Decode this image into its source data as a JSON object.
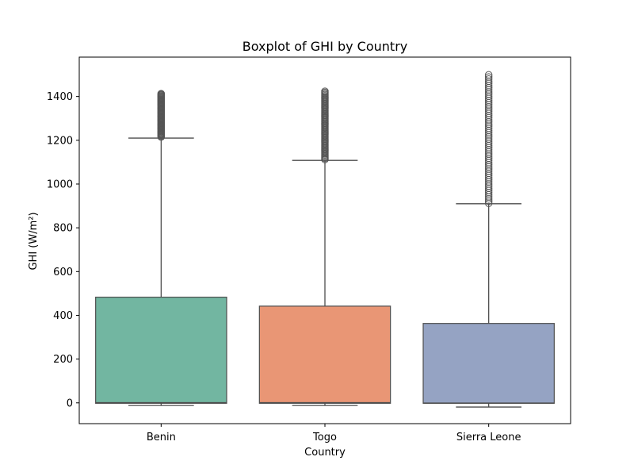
{
  "chart_data": {
    "type": "boxplot",
    "title": "Boxplot of GHI by Country",
    "xlabel": "Country",
    "ylabel": "GHI (W/m²)",
    "ylim": [
      -95,
      1580
    ],
    "yticks": [
      0,
      200,
      400,
      600,
      800,
      1000,
      1200,
      1400
    ],
    "categories": [
      "Benin",
      "Togo",
      "Sierra Leone"
    ],
    "series": [
      {
        "category": "Benin",
        "color": "#72b6a1",
        "min": -12,
        "q1": -2,
        "median": 1,
        "q3": 483,
        "whisker_high": 1210,
        "outliers_low": 1215,
        "outliers_high": 1413
      },
      {
        "category": "Togo",
        "color": "#e99675",
        "min": -12,
        "q1": -2,
        "median": 1,
        "q3": 442,
        "whisker_high": 1108,
        "outliers_low": 1112,
        "outliers_high": 1424
      },
      {
        "category": "Sierra Leone",
        "color": "#95a3c3",
        "min": -19,
        "q1": -2,
        "median": -1,
        "q3": 363,
        "whisker_high": 910,
        "outliers_low": 912,
        "outliers_high": 1499
      }
    ]
  }
}
